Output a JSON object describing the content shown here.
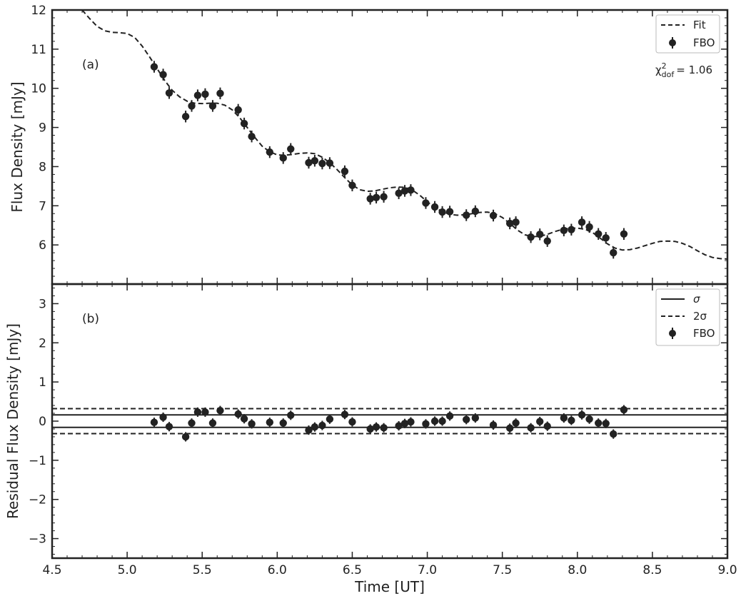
{
  "chart_data": [
    {
      "panel": "(a)",
      "type": "scatter",
      "ylabel": "Flux Density [mJy]",
      "xlim": [
        4.5,
        9.0
      ],
      "ylim": [
        5.0,
        12.0
      ],
      "yticks": [
        6,
        7,
        8,
        9,
        10,
        11,
        12
      ],
      "legend": {
        "position": "top-right",
        "entries": [
          "Fit",
          "FBO"
        ]
      },
      "chi2": {
        "symbol": "χ",
        "sup": "2",
        "sub": "dof",
        "value": "= 1.06"
      },
      "fit_curve": {
        "label": "Fit",
        "style": "dashed",
        "x": [
          4.7,
          4.75,
          4.8,
          4.85,
          4.9,
          4.95,
          5.0,
          5.05,
          5.1,
          5.15,
          5.2,
          5.25,
          5.3,
          5.35,
          5.4,
          5.45,
          5.5,
          5.55,
          5.6,
          5.65,
          5.7,
          5.75,
          5.8,
          5.85,
          5.9,
          5.95,
          6.0,
          6.05,
          6.1,
          6.15,
          6.2,
          6.25,
          6.3,
          6.35,
          6.4,
          6.45,
          6.5,
          6.55,
          6.6,
          6.65,
          6.7,
          6.75,
          6.8,
          6.85,
          6.9,
          6.95,
          7.0,
          7.05,
          7.1,
          7.15,
          7.2,
          7.25,
          7.3,
          7.35,
          7.4,
          7.45,
          7.5,
          7.55,
          7.6,
          7.65,
          7.7,
          7.75,
          7.8,
          7.85,
          7.9,
          7.95,
          8.0,
          8.05,
          8.1,
          8.15,
          8.2,
          8.25,
          8.3,
          8.35,
          8.4,
          8.45,
          8.5,
          8.55,
          8.6,
          8.65,
          8.7,
          8.75,
          8.8,
          8.85,
          8.9,
          8.95,
          9.0
        ],
        "y": [
          12.0,
          11.78,
          11.58,
          11.47,
          11.43,
          11.42,
          11.4,
          11.3,
          11.08,
          10.8,
          10.5,
          10.2,
          9.95,
          9.78,
          9.67,
          9.62,
          9.61,
          9.62,
          9.62,
          9.57,
          9.45,
          9.25,
          9.0,
          8.75,
          8.52,
          8.38,
          8.3,
          8.29,
          8.31,
          8.34,
          8.35,
          8.33,
          8.24,
          8.1,
          7.92,
          7.72,
          7.53,
          7.41,
          7.37,
          7.38,
          7.42,
          7.46,
          7.48,
          7.47,
          7.4,
          7.27,
          7.1,
          6.96,
          6.85,
          6.78,
          6.76,
          6.77,
          6.8,
          6.83,
          6.84,
          6.8,
          6.7,
          6.55,
          6.38,
          6.26,
          6.21,
          6.22,
          6.27,
          6.34,
          6.4,
          6.43,
          6.43,
          6.4,
          6.32,
          6.18,
          6.03,
          5.92,
          5.87,
          5.88,
          5.92,
          5.98,
          6.04,
          6.09,
          6.1,
          6.09,
          6.04,
          5.96,
          5.85,
          5.75,
          5.68,
          5.65,
          5.64
        ]
      },
      "series": [
        {
          "name": "FBO",
          "x": [
            5.18,
            5.24,
            5.28,
            5.39,
            5.43,
            5.47,
            5.52,
            5.57,
            5.62,
            5.74,
            5.78,
            5.83,
            5.95,
            6.04,
            6.09,
            6.21,
            6.25,
            6.3,
            6.35,
            6.45,
            6.5,
            6.62,
            6.66,
            6.71,
            6.81,
            6.85,
            6.89,
            6.99,
            7.05,
            7.1,
            7.15,
            7.26,
            7.32,
            7.44,
            7.55,
            7.59,
            7.69,
            7.75,
            7.8,
            7.91,
            7.96,
            8.03,
            8.08,
            8.14,
            8.19,
            8.24,
            8.31
          ],
          "y": [
            10.55,
            10.35,
            9.88,
            9.28,
            9.55,
            9.82,
            9.85,
            9.55,
            9.87,
            9.45,
            9.1,
            8.77,
            8.37,
            8.22,
            8.45,
            8.1,
            8.15,
            8.08,
            8.09,
            7.88,
            7.52,
            7.18,
            7.21,
            7.23,
            7.32,
            7.38,
            7.4,
            7.07,
            6.97,
            6.84,
            6.85,
            6.76,
            6.86,
            6.75,
            6.55,
            6.58,
            6.2,
            6.27,
            6.1,
            6.37,
            6.39,
            6.58,
            6.46,
            6.28,
            6.18,
            5.8,
            6.28
          ],
          "yerr": 0.15
        }
      ]
    },
    {
      "panel": "(b)",
      "type": "scatter",
      "xlabel": "Time [UT]",
      "ylabel": "Residual Flux Density [mJy]",
      "xlim": [
        4.5,
        9.0
      ],
      "ylim": [
        -3.5,
        3.5
      ],
      "xticks": [
        "4.5",
        "5.0",
        "5.5",
        "6.0",
        "6.5",
        "7.0",
        "7.5",
        "8.0",
        "8.5",
        "9.0"
      ],
      "yticks": [
        3,
        2,
        1,
        0,
        -1,
        -2,
        -3
      ],
      "ytick_labels": [
        "3",
        "2",
        "1",
        "0",
        "−1",
        "−2",
        "−3"
      ],
      "legend": {
        "position": "top-right",
        "entries": [
          "σ",
          "2σ",
          "FBO"
        ]
      },
      "sigma": 0.16,
      "two_sigma": 0.32,
      "series": [
        {
          "name": "FBO",
          "x": [
            5.18,
            5.24,
            5.28,
            5.39,
            5.43,
            5.47,
            5.52,
            5.57,
            5.62,
            5.74,
            5.78,
            5.83,
            5.95,
            6.04,
            6.09,
            6.21,
            6.25,
            6.3,
            6.35,
            6.45,
            6.5,
            6.62,
            6.66,
            6.71,
            6.81,
            6.85,
            6.89,
            6.99,
            7.05,
            7.1,
            7.15,
            7.26,
            7.32,
            7.44,
            7.55,
            7.59,
            7.69,
            7.75,
            7.8,
            7.91,
            7.96,
            8.03,
            8.08,
            8.14,
            8.19,
            8.24,
            8.31
          ],
          "y": [
            -0.03,
            0.1,
            -0.14,
            -0.4,
            -0.05,
            0.23,
            0.23,
            -0.05,
            0.27,
            0.18,
            0.06,
            -0.07,
            -0.03,
            -0.05,
            0.15,
            -0.23,
            -0.15,
            -0.11,
            0.05,
            0.17,
            -0.02,
            -0.2,
            -0.15,
            -0.17,
            -0.12,
            -0.06,
            -0.02,
            -0.07,
            0.0,
            0.0,
            0.13,
            0.04,
            0.08,
            -0.1,
            -0.18,
            -0.05,
            -0.17,
            -0.01,
            -0.13,
            0.08,
            0.02,
            0.16,
            0.05,
            -0.05,
            -0.06,
            -0.33,
            0.29
          ],
          "yerr": 0.12
        }
      ]
    }
  ],
  "legend_labels": {
    "fit": "Fit",
    "fbo": "FBO",
    "sigma": "σ",
    "two_sigma": "2σ"
  }
}
